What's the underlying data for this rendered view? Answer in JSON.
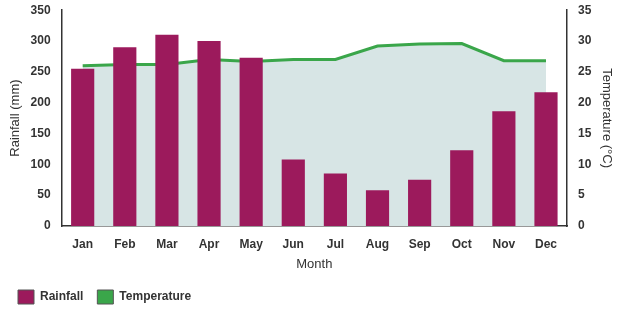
{
  "chart_data": {
    "type": "bar",
    "x_label": "Month",
    "y_label": "Rainfall (mm)",
    "y2_label": "Temperature (°C)",
    "categories": [
      "Jan",
      "Feb",
      "Mar",
      "Apr",
      "May",
      "Jun",
      "Jul",
      "Aug",
      "Sep",
      "Oct",
      "Nov",
      "Dec"
    ],
    "series": [
      {
        "name": "Rainfall",
        "type": "bar",
        "color": "#9c1a5c",
        "values": [
          255,
          290,
          310,
          300,
          273,
          108,
          85,
          58,
          75,
          123,
          186,
          217
        ]
      },
      {
        "name": "Temperature",
        "type": "line",
        "color": "#3aa64a",
        "axis": "y2",
        "values": [
          26,
          26.2,
          26.2,
          27,
          26.7,
          27,
          27,
          29.2,
          29.5,
          29.6,
          26.8,
          26.8
        ]
      }
    ],
    "ylim": [
      0,
      350
    ],
    "yticks": [
      0,
      50,
      100,
      150,
      200,
      250,
      300,
      350
    ],
    "y2lim": [
      0,
      35
    ],
    "y2ticks": [
      0,
      5,
      10,
      15,
      20,
      25,
      30,
      35
    ],
    "grid": false,
    "legend": "bottom"
  }
}
